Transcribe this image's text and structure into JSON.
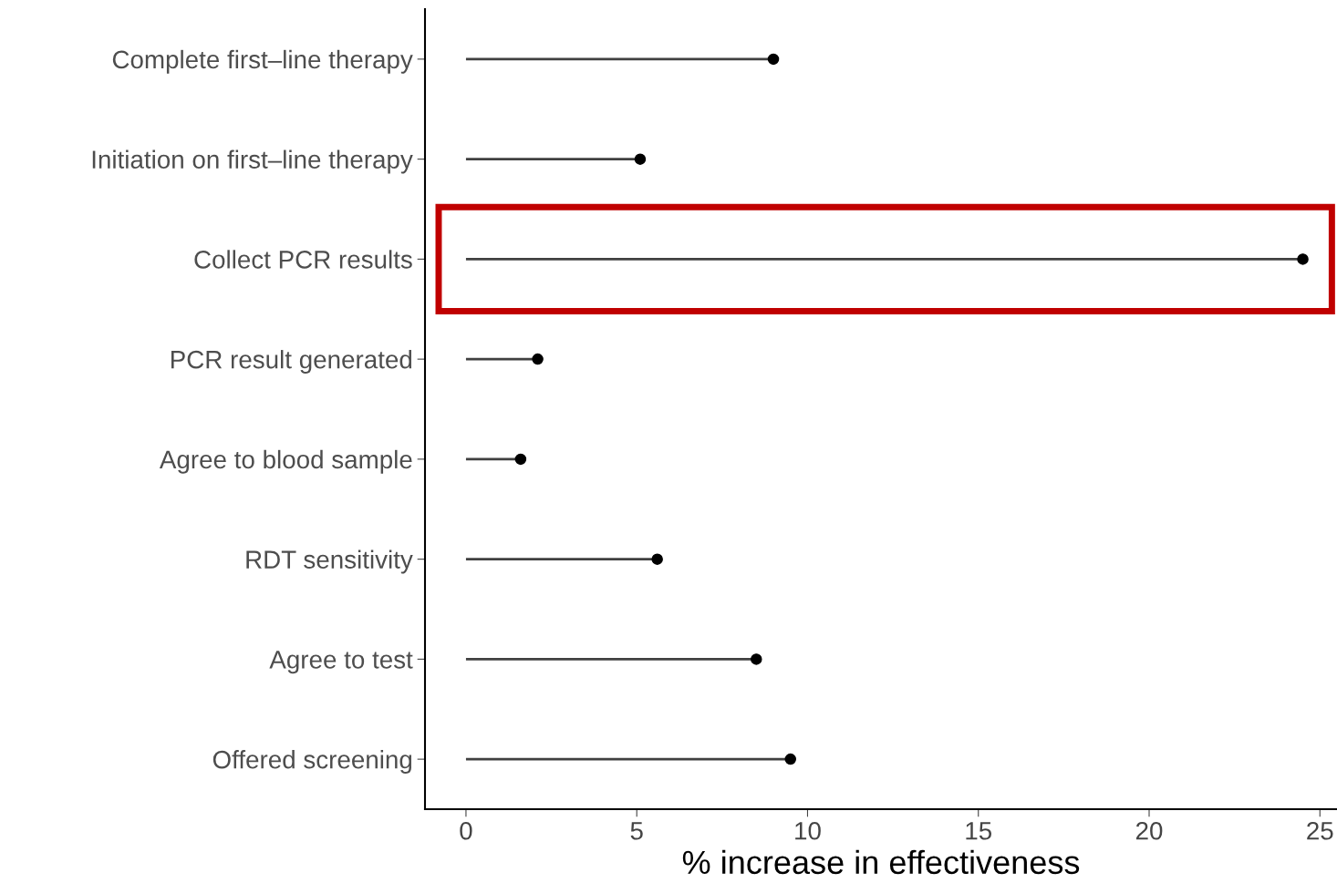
{
  "chart_data": {
    "type": "lollipop",
    "orientation": "horizontal",
    "xlabel": "% increase in effectiveness",
    "categories": [
      "Complete first–line therapy",
      "Initiation on first–line therapy",
      "Collect PCR results",
      "PCR result generated",
      "Agree to blood sample",
      "RDT sensitivity",
      "Agree to test",
      "Offered screening"
    ],
    "values": [
      9.0,
      5.1,
      24.5,
      2.1,
      1.6,
      5.6,
      8.5,
      9.5
    ],
    "color": "#000000",
    "xlim": [
      -1.2,
      25.5
    ],
    "xticks": [
      0,
      5,
      10,
      15,
      20,
      25
    ],
    "grid": false,
    "marker": "circle"
  }
}
